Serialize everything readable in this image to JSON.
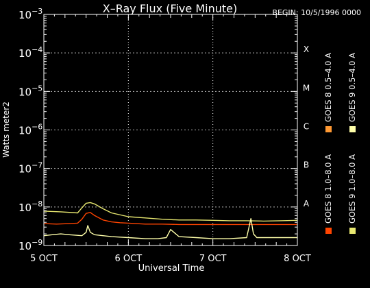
{
  "chart_data": {
    "type": "line",
    "title": "X–Ray Flux (Five Minute)",
    "begin_label": "BEGIN: 10/5/1996 0000",
    "xlabel": "Universal Time",
    "ylabel": "Watts meter2",
    "y_scale": "log",
    "ylim": [
      1e-09,
      0.001
    ],
    "xlim_days": [
      0,
      3
    ],
    "grid": "vertical dotted at day boundaries",
    "x_ticks": [
      {
        "day": 0,
        "label": "5 OCT"
      },
      {
        "day": 1,
        "label": "6 OCT"
      },
      {
        "day": 2,
        "label": "7 OCT"
      },
      {
        "day": 3,
        "label": "8 OCT"
      }
    ],
    "y_ticks": [
      {
        "exp": -9,
        "label_base": "10",
        "label_exp": "−9"
      },
      {
        "exp": -8,
        "label_base": "10",
        "label_exp": "−8"
      },
      {
        "exp": -7,
        "label_base": "10",
        "label_exp": "−7"
      },
      {
        "exp": -6,
        "label_base": "10",
        "label_exp": "−6"
      },
      {
        "exp": -5,
        "label_base": "10",
        "label_exp": "−5"
      },
      {
        "exp": -4,
        "label_base": "10",
        "label_exp": "−4"
      },
      {
        "exp": -3,
        "label_base": "10",
        "label_exp": "−3"
      }
    ],
    "flare_classes": [
      {
        "label": "A",
        "exp": -8
      },
      {
        "label": "B",
        "exp": -7
      },
      {
        "label": "C",
        "exp": -6
      },
      {
        "label": "M",
        "exp": -5
      },
      {
        "label": "X",
        "exp": -4
      }
    ],
    "legend_position": "right (rotated)",
    "legend": [
      {
        "label": "GOES 8  1.0–8.0 A",
        "color": "#ff4400"
      },
      {
        "label": "GOES 8  0.5–4.0 A",
        "color": "#ff9933"
      },
      {
        "label": "GOES 9  1.0–8.0 A",
        "color": "#e8e870"
      },
      {
        "label": "GOES 9  0.5–4.0 A",
        "color": "#ffffaa"
      }
    ],
    "series": [
      {
        "name": "GOES 8  1.0–8.0 A",
        "color": "#ff4400",
        "x": [
          0.0,
          0.15,
          0.3,
          0.4,
          0.45,
          0.5,
          0.55,
          0.6,
          0.7,
          0.8,
          0.9,
          1.0,
          1.2,
          1.4,
          1.6,
          1.8,
          2.0,
          2.2,
          2.4,
          2.6,
          2.8,
          3.0
        ],
        "y": [
          3.7e-09,
          3.6e-09,
          3.7e-09,
          3.8e-09,
          4.8e-09,
          6.8e-09,
          7.2e-09,
          6e-09,
          4.6e-09,
          4.1e-09,
          3.9e-09,
          3.8e-09,
          3.6e-09,
          3.6e-09,
          3.5e-09,
          3.5e-09,
          3.5e-09,
          3.5e-09,
          3.5e-09,
          3.5e-09,
          3.5e-09,
          3.5e-09
        ]
      },
      {
        "name": "GOES 9  1.0–8.0 A",
        "color": "#e8e870",
        "x": [
          0.0,
          0.2,
          0.4,
          0.45,
          0.5,
          0.55,
          0.6,
          0.7,
          0.8,
          1.0,
          1.2,
          1.4,
          1.6,
          1.8,
          2.0,
          2.2,
          2.4,
          2.6,
          2.8,
          3.0
        ],
        "y": [
          7.8e-09,
          7.5e-09,
          7e-09,
          9.5e-09,
          1.25e-08,
          1.3e-08,
          1.2e-08,
          9e-09,
          7e-09,
          5.6e-09,
          5.2e-09,
          4.8e-09,
          4.6e-09,
          4.6e-09,
          4.5e-09,
          4.4e-09,
          4.4e-09,
          4.3e-09,
          4.4e-09,
          4.5e-09
        ]
      },
      {
        "name": "GOES 9  0.5–4.0 A",
        "color": "#ffffaa",
        "x": [
          0.0,
          0.1,
          0.2,
          0.3,
          0.45,
          0.5,
          0.52,
          0.55,
          0.6,
          0.7,
          0.8,
          1.0,
          1.2,
          1.35,
          1.45,
          1.5,
          1.6,
          1.8,
          2.0,
          2.2,
          2.4,
          2.45,
          2.48,
          2.52,
          2.6,
          2.8,
          3.0
        ],
        "y": [
          1.8e-09,
          1.9e-09,
          2e-09,
          1.9e-09,
          1.8e-09,
          2.2e-09,
          3.3e-09,
          2.2e-09,
          1.9e-09,
          1.8e-09,
          1.7e-09,
          1.6e-09,
          1.5e-09,
          1.5e-09,
          1.6e-09,
          2.6e-09,
          1.7e-09,
          1.6e-09,
          1.5e-09,
          1.5e-09,
          1.6e-09,
          5e-09,
          2e-09,
          1.6e-09,
          1.6e-09,
          1.6e-09,
          1.6e-09
        ]
      }
    ]
  }
}
